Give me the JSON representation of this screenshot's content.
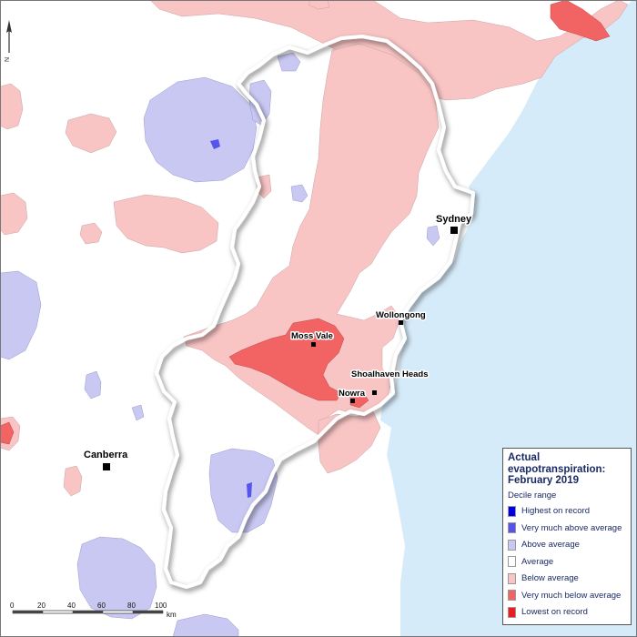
{
  "map": {
    "places": [
      {
        "name": "Sydney"
      },
      {
        "name": "Wollongong"
      },
      {
        "name": "Moss Vale"
      },
      {
        "name": "Shoalhaven Heads"
      },
      {
        "name": "Nowra"
      },
      {
        "name": "Canberra"
      }
    ],
    "north_arrow_label": "N",
    "scale_bar": {
      "ticks": [
        "0",
        "20",
        "40",
        "60",
        "80",
        "100"
      ],
      "unit": "km"
    }
  },
  "legend": {
    "title_line1": "Actual",
    "title_line2": "evapotranspiration:",
    "title_line3": "February 2019",
    "subtitle": "Decile range",
    "items": [
      {
        "label": "Highest on record",
        "color": "#0000e6"
      },
      {
        "label": "Very much above average",
        "color": "#5555ee"
      },
      {
        "label": "Above average",
        "color": "#c8c8f2"
      },
      {
        "label": "Average",
        "color": "#ffffff"
      },
      {
        "label": "Below average",
        "color": "#f8c4c4"
      },
      {
        "label": "Very much below average",
        "color": "#f26464"
      },
      {
        "label": "Lowest on record",
        "color": "#ee1c1c"
      }
    ]
  },
  "colors": {
    "ocean": "#d6ebf9",
    "land": "#ffffff",
    "below_average": "#f8c4c4",
    "above_average": "#c8c8f2",
    "very_much_below": "#f26464"
  }
}
